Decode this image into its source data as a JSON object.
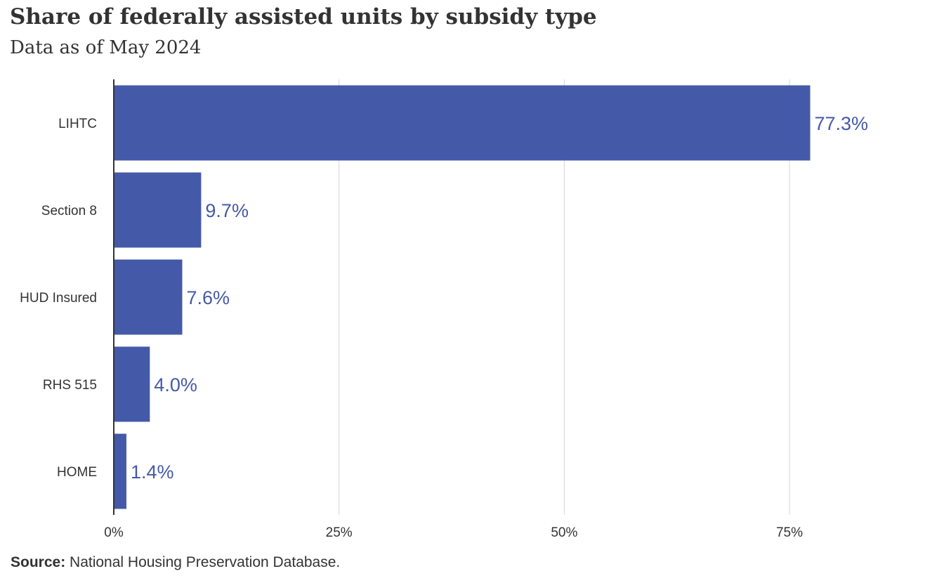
{
  "header": {
    "title": "Share of federally assisted units by subsidy type",
    "subtitle": "Data as of May 2024"
  },
  "footer": {
    "source_label": "Source:",
    "source_text": " National Housing Preservation Database."
  },
  "colors": {
    "bar": "#445aa8",
    "label": "#445aa8",
    "grid": "#d4d4d4",
    "axis": "#333333",
    "text": "#333333"
  },
  "chart_data": {
    "type": "bar",
    "orientation": "horizontal",
    "categories": [
      "LIHTC",
      "Section 8",
      "HUD Insured",
      "RHS 515",
      "HOME"
    ],
    "values": [
      77.3,
      9.7,
      7.6,
      4.0,
      1.4
    ],
    "value_labels": [
      "77.3%",
      "9.7%",
      "7.6%",
      "4.0%",
      "1.4%"
    ],
    "xlim": [
      0,
      85
    ],
    "xticks": [
      0,
      25,
      50,
      75
    ],
    "xtick_labels": [
      "0%",
      "25%",
      "50%",
      "75%"
    ],
    "grid": true
  }
}
